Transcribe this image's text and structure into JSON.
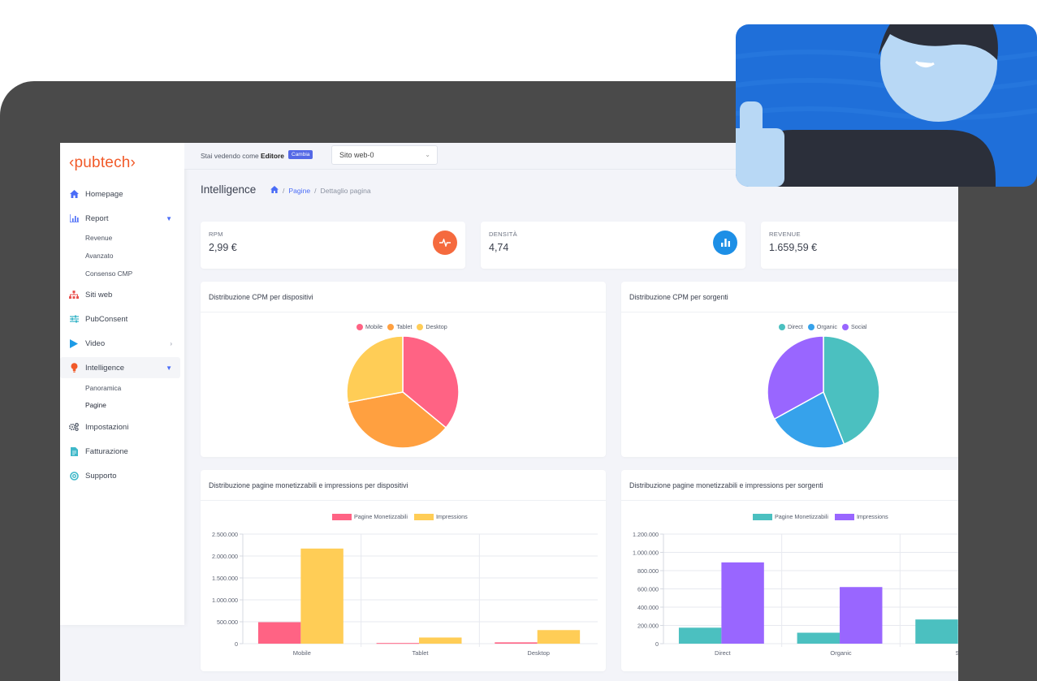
{
  "brand": {
    "logo_text": "‹pubtech›",
    "accent": "#f15a29"
  },
  "sidebar": {
    "items": [
      {
        "label": "Homepage",
        "icon": "home-icon"
      },
      {
        "label": "Report",
        "icon": "chart-icon"
      },
      {
        "label": "Siti web",
        "icon": "sitemap-icon"
      },
      {
        "label": "PubConsent",
        "icon": "sliders-icon"
      },
      {
        "label": "Video",
        "icon": "play-icon"
      },
      {
        "label": "Intelligence",
        "icon": "lightbulb-icon"
      },
      {
        "label": "Impostazioni",
        "icon": "gears-icon"
      },
      {
        "label": "Fatturazione",
        "icon": "invoice-icon"
      },
      {
        "label": "Supporto",
        "icon": "support-icon"
      }
    ],
    "report_sub": [
      "Revenue",
      "Avanzato",
      "Consenso CMP"
    ],
    "intelligence_sub": [
      "Panoramica",
      "Pagine"
    ]
  },
  "topbar": {
    "viewing_prefix": "Stai vedendo come ",
    "viewing_role": "Editore",
    "change_label": "Cambia",
    "site_select_value": "Sito web-0"
  },
  "header": {
    "title": "Intelligence",
    "breadcrumb": [
      "Pagine",
      "Dettaglio pagina"
    ]
  },
  "stats": [
    {
      "label": "RPM",
      "value": "2,99 €",
      "icon": "pulse-icon",
      "color": "#f56a3e"
    },
    {
      "label": "DENSITÀ",
      "value": "4,74",
      "icon": "bar-chart-icon",
      "color": "#1d8fe6"
    },
    {
      "label": "REVENUE",
      "value": "1.659,59 €",
      "icon": "",
      "color": ""
    }
  ],
  "colors": {
    "pink": "#ff6384",
    "orange": "#ffa040",
    "yellow": "#ffcd56",
    "teal": "#4bc0c0",
    "blue": "#36a2eb",
    "purple": "#9966ff"
  },
  "chart_data": [
    {
      "type": "pie",
      "title": "Distribuzione CPM per dispositivi",
      "categories": [
        "Mobile",
        "Tablet",
        "Desktop"
      ],
      "values": [
        36,
        36,
        28
      ],
      "colors": [
        "#ff6384",
        "#ffa040",
        "#ffcd56"
      ],
      "legend": "top"
    },
    {
      "type": "pie",
      "title": "Distribuzione CPM per sorgenti",
      "categories": [
        "Direct",
        "Organic",
        "Social"
      ],
      "values": [
        44,
        23,
        33
      ],
      "colors": [
        "#4bc0c0",
        "#36a2eb",
        "#9966ff"
      ],
      "legend": "top"
    },
    {
      "type": "bar",
      "title": "Distribuzione pagine monetizzabili e impressions per dispositivi",
      "categories": [
        "Mobile",
        "Tablet",
        "Desktop"
      ],
      "series": [
        {
          "name": "Pagine Monetizzabili",
          "values": [
            490000,
            15000,
            30000
          ],
          "color": "#ff6384"
        },
        {
          "name": "Impressions",
          "values": [
            2170000,
            140000,
            310000
          ],
          "color": "#ffcd56"
        }
      ],
      "yticks": [
        "2.500.000",
        "2.000.000",
        "1.500.000",
        "1.000.000",
        "500.000",
        "0"
      ],
      "ylim": [
        0,
        2500000
      ],
      "grid": true,
      "legend": "top"
    },
    {
      "type": "bar",
      "title": "Distribuzione pagine monetizzabili e impressions per sorgenti",
      "categories": [
        "Direct",
        "Organic",
        "So"
      ],
      "series": [
        {
          "name": "Pagine Monetizzabili",
          "values": [
            175000,
            120000,
            265000
          ],
          "color": "#4bc0c0"
        },
        {
          "name": "Impressions",
          "values": [
            890000,
            620000,
            null
          ],
          "color": "#9966ff"
        }
      ],
      "yticks": [
        "1.200.000",
        "1.000.000",
        "800.000",
        "600.000",
        "400.000",
        "200.000",
        "0"
      ],
      "ylim": [
        0,
        1200000
      ],
      "grid": true,
      "legend": "top"
    }
  ]
}
